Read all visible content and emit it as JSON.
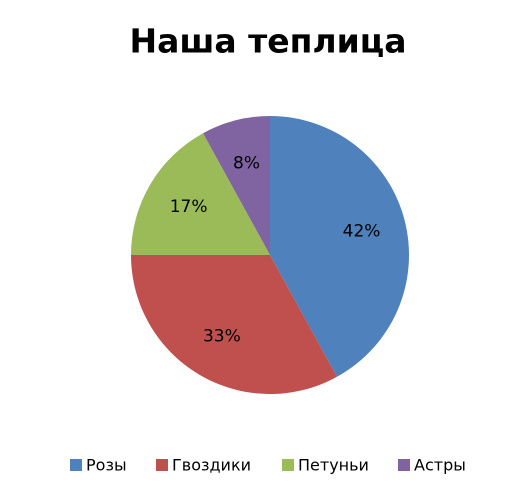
{
  "chart_data": {
    "type": "pie",
    "title": "Наша теплица",
    "categories": [
      "Розы",
      "Гвоздики",
      "Петуньи",
      "Астры"
    ],
    "values": [
      42,
      33,
      17,
      8
    ],
    "value_labels": [
      "42%",
      "33%",
      "17%",
      "8%"
    ],
    "colors": [
      "#4f81bd",
      "#c0504d",
      "#9bbb59",
      "#8064a2"
    ],
    "legend": "bottom"
  }
}
